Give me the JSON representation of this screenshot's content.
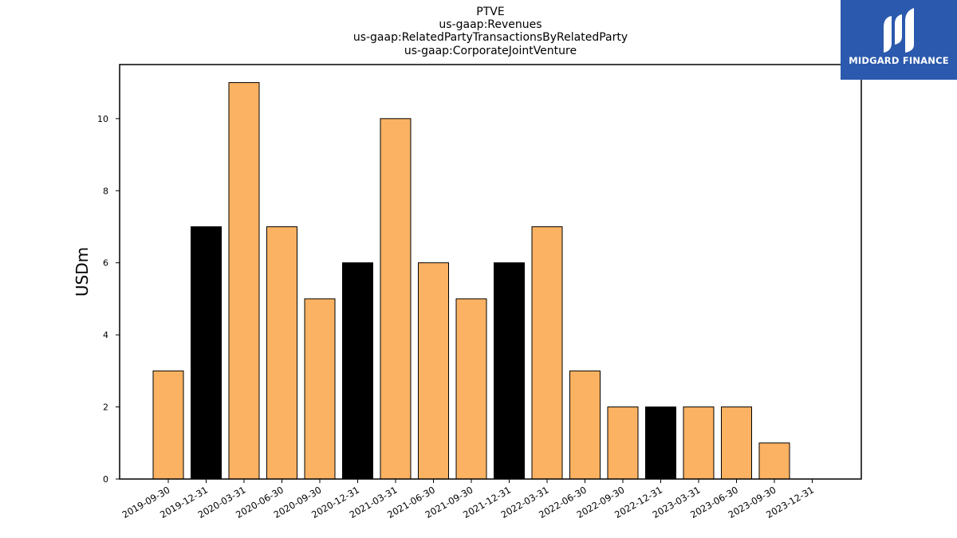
{
  "header": {
    "title_lines": [
      "PTVE",
      "us-gaap:Revenues",
      "us-gaap:RelatedPartyTransactionsByRelatedParty",
      "us-gaap:CorporateJointVenture"
    ]
  },
  "logo": {
    "text": "MIDGARD FINANCE",
    "color": "#2b59ad"
  },
  "chart_data": {
    "type": "bar",
    "title": "PTVE\nus-gaap:Revenues\nus-gaap:RelatedPartyTransactionsByRelatedParty\nus-gaap:CorporateJointVenture",
    "xlabel": "",
    "ylabel": "USDm",
    "ylim": [
      0,
      11.5
    ],
    "yticks": [
      0,
      2,
      4,
      6,
      8,
      10
    ],
    "grid": false,
    "categories": [
      "2019-09-30",
      "2019-12-31",
      "2020-03-31",
      "2020-06-30",
      "2020-09-30",
      "2020-12-31",
      "2021-03-31",
      "2021-06-30",
      "2021-09-30",
      "2021-12-31",
      "2022-03-31",
      "2022-06-30",
      "2022-09-30",
      "2022-12-31",
      "2023-03-31",
      "2023-06-30",
      "2023-09-30",
      "2023-12-31"
    ],
    "values": [
      3,
      7,
      11,
      7,
      5,
      6,
      10,
      6,
      5,
      6,
      7,
      3,
      2,
      2,
      2,
      2,
      1,
      0
    ],
    "bar_colors": [
      "#fbb262",
      "#000000",
      "#fbb262",
      "#fbb262",
      "#fbb262",
      "#000000",
      "#fbb262",
      "#fbb262",
      "#fbb262",
      "#000000",
      "#fbb262",
      "#fbb262",
      "#fbb262",
      "#000000",
      "#fbb262",
      "#fbb262",
      "#fbb262",
      "#fbb262"
    ]
  }
}
